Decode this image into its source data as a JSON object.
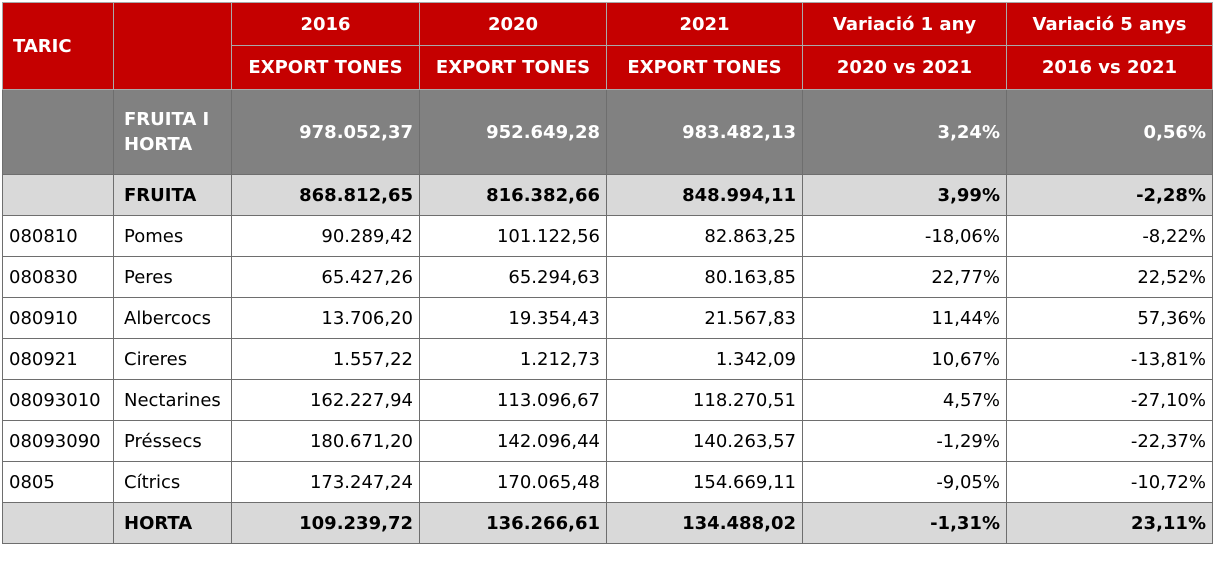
{
  "header": {
    "taric": "TARIC",
    "years": [
      "2016",
      "2020",
      "2021"
    ],
    "variation_1": "Variació 1 any",
    "variation_5": "Variació 5 anys",
    "export_label": "EXPORT TONES",
    "cmp_1": "2020 vs 2021",
    "cmp_5": "2016 vs 2021"
  },
  "total": {
    "label": "FRUITA I HORTA",
    "v2016": "978.052,37",
    "v2020": "952.649,28",
    "v2021": "983.482,13",
    "var1": "3,24%",
    "var5": "0,56%"
  },
  "fruita": {
    "label": "FRUITA",
    "v2016": "868.812,65",
    "v2020": "816.382,66",
    "v2021": "848.994,11",
    "var1": "3,99%",
    "var5": "-2,28%"
  },
  "rows": [
    {
      "code": "080810",
      "name": "Pomes",
      "v2016": "90.289,42",
      "v2020": "101.122,56",
      "v2021": "82.863,25",
      "var1": "-18,06%",
      "var5": "-8,22%"
    },
    {
      "code": "080830",
      "name": "Peres",
      "v2016": "65.427,26",
      "v2020": "65.294,63",
      "v2021": "80.163,85",
      "var1": "22,77%",
      "var5": "22,52%"
    },
    {
      "code": "080910",
      "name": "Albercocs",
      "v2016": "13.706,20",
      "v2020": "19.354,43",
      "v2021": "21.567,83",
      "var1": "11,44%",
      "var5": "57,36%"
    },
    {
      "code": "080921",
      "name": "Cireres",
      "v2016": "1.557,22",
      "v2020": "1.212,73",
      "v2021": "1.342,09",
      "var1": "10,67%",
      "var5": "-13,81%"
    },
    {
      "code": "08093010",
      "name": "Nectarines",
      "v2016": "162.227,94",
      "v2020": "113.096,67",
      "v2021": "118.270,51",
      "var1": "4,57%",
      "var5": "-27,10%"
    },
    {
      "code": "08093090",
      "name": "Préssecs",
      "v2016": "180.671,20",
      "v2020": "142.096,44",
      "v2021": "140.263,57",
      "var1": "-1,29%",
      "var5": "-22,37%"
    },
    {
      "code": "0805",
      "name": "Cítrics",
      "v2016": "173.247,24",
      "v2020": "170.065,48",
      "v2021": "154.669,11",
      "var1": "-9,05%",
      "var5": "-10,72%"
    }
  ],
  "horta": {
    "label": "HORTA",
    "v2016": "109.239,72",
    "v2020": "136.266,61",
    "v2021": "134.488,02",
    "var1": "-1,31%",
    "var5": "23,11%"
  },
  "colors": {
    "header_bg": "#c50000",
    "total_bg": "#818181",
    "subtotal_bg": "#d9d9d9"
  }
}
